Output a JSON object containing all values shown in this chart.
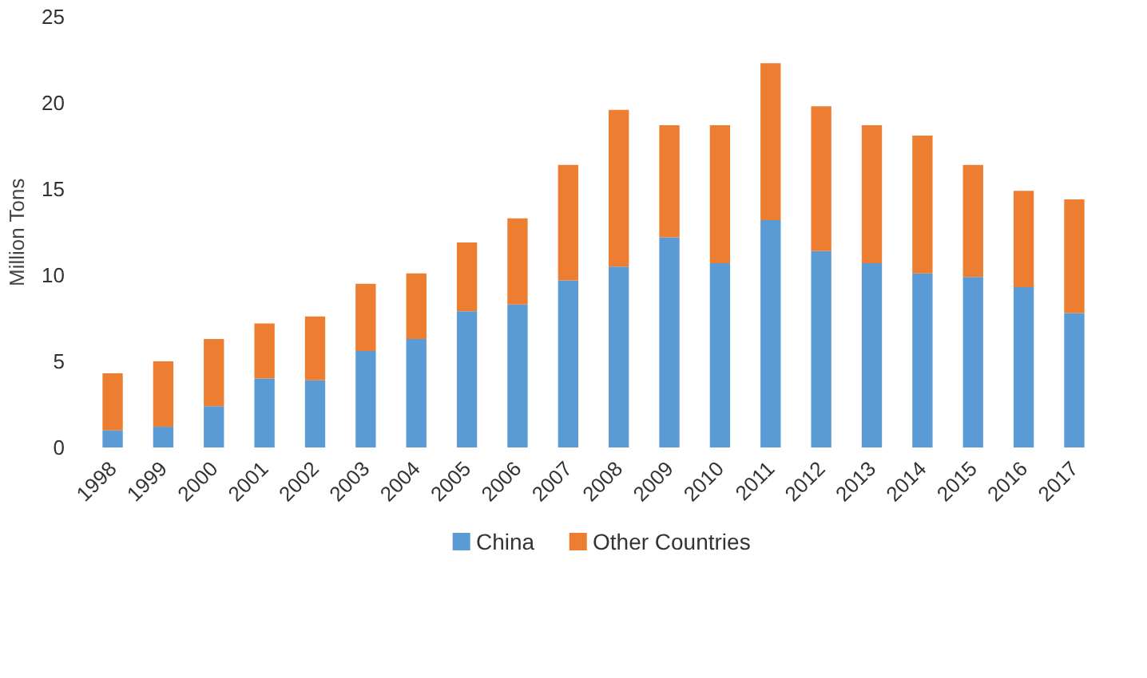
{
  "chart_data": {
    "type": "bar",
    "stacked": true,
    "ylabel": "Million Tons",
    "categories": [
      "1998",
      "1999",
      "2000",
      "2001",
      "2002",
      "2003",
      "2004",
      "2005",
      "2006",
      "2007",
      "2008",
      "2009",
      "2010",
      "2011",
      "2012",
      "2013",
      "2014",
      "2015",
      "2016",
      "2017"
    ],
    "series": [
      {
        "name": "China",
        "color": "#5b9bd5",
        "values": [
          1.0,
          1.2,
          2.4,
          4.0,
          3.9,
          5.6,
          6.3,
          7.9,
          8.3,
          9.7,
          10.5,
          12.2,
          10.7,
          13.2,
          11.4,
          10.7,
          10.1,
          9.9,
          9.3,
          7.8
        ]
      },
      {
        "name": "Other Countries",
        "color": "#ed7d31",
        "values": [
          3.3,
          3.8,
          3.9,
          3.2,
          3.7,
          3.9,
          3.8,
          4.0,
          5.0,
          6.7,
          9.1,
          6.5,
          8.0,
          9.1,
          8.4,
          8.0,
          8.0,
          6.5,
          5.6,
          6.6
        ]
      }
    ],
    "ylim": [
      0,
      25
    ],
    "yticks": [
      0,
      5,
      10,
      15,
      20,
      25
    ],
    "grid": false,
    "legend": "bottom"
  }
}
